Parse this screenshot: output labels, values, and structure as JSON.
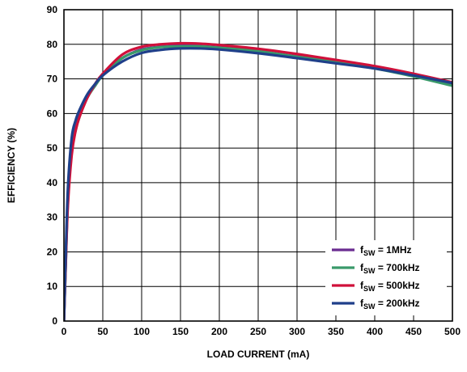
{
  "chart_data": {
    "type": "line",
    "title": "",
    "xlabel": "LOAD CURRENT (mA)",
    "ylabel": "EFFICIENCY (%)",
    "xlim": [
      0,
      500
    ],
    "ylim": [
      0,
      90
    ],
    "xticks": [
      "0",
      "50",
      "100",
      "150",
      "200",
      "250",
      "300",
      "350",
      "400",
      "450",
      "500"
    ],
    "yticks": [
      "0",
      "10",
      "20",
      "30",
      "40",
      "50",
      "60",
      "70",
      "80",
      "90"
    ],
    "grid": true,
    "legend_position": "bottom-right",
    "series": [
      {
        "name": "1MHz",
        "legend_prefix": "f",
        "legend_sub": "SW",
        "legend_suffix": " = 1MHz",
        "color": "#6a2c91",
        "x": [
          0,
          2,
          5,
          10,
          15,
          20,
          30,
          40,
          50,
          75,
          100,
          125,
          150,
          175,
          200,
          250,
          300,
          350,
          400,
          450,
          500
        ],
        "y": [
          0,
          15,
          35,
          50,
          56,
          60,
          65,
          68,
          71,
          76,
          78.5,
          79.3,
          79.6,
          79.5,
          79.1,
          78,
          76.5,
          75,
          73.2,
          71,
          68.5
        ]
      },
      {
        "name": "700kHz",
        "legend_prefix": "f",
        "legend_sub": "SW",
        "legend_suffix": " = 700kHz",
        "color": "#3a9a6a",
        "x": [
          0,
          2,
          5,
          10,
          15,
          20,
          30,
          40,
          50,
          75,
          100,
          125,
          150,
          175,
          200,
          250,
          300,
          350,
          400,
          450,
          500
        ],
        "y": [
          0,
          14,
          34,
          49,
          55,
          59,
          64.5,
          68,
          71,
          76,
          78.3,
          79.2,
          79.4,
          79.4,
          79,
          78,
          76.4,
          74.8,
          73,
          70.7,
          68
        ]
      },
      {
        "name": "500kHz",
        "legend_prefix": "f",
        "legend_sub": "SW",
        "legend_suffix": " = 500kHz",
        "color": "#d0103a",
        "x": [
          0,
          2,
          5,
          10,
          15,
          20,
          30,
          40,
          50,
          75,
          100,
          125,
          150,
          175,
          200,
          250,
          300,
          350,
          400,
          450,
          500
        ],
        "y": [
          0,
          14,
          33,
          48,
          55,
          59,
          64.5,
          68.5,
          71.5,
          77,
          79.3,
          80,
          80.3,
          80.2,
          79.8,
          78.7,
          77.2,
          75.5,
          73.7,
          71.5,
          69
        ]
      },
      {
        "name": "200kHz",
        "legend_prefix": "f",
        "legend_sub": "SW",
        "legend_suffix": " = 200kHz",
        "color": "#1f3f8a",
        "x": [
          0,
          2,
          5,
          10,
          15,
          20,
          30,
          40,
          50,
          75,
          100,
          125,
          150,
          175,
          200,
          250,
          300,
          350,
          400,
          450,
          500
        ],
        "y": [
          0,
          16,
          38,
          53,
          58,
          61,
          65.5,
          68.5,
          71,
          75,
          77.5,
          78.4,
          78.8,
          78.8,
          78.5,
          77.4,
          76,
          74.5,
          73,
          71,
          68.8
        ]
      }
    ]
  }
}
